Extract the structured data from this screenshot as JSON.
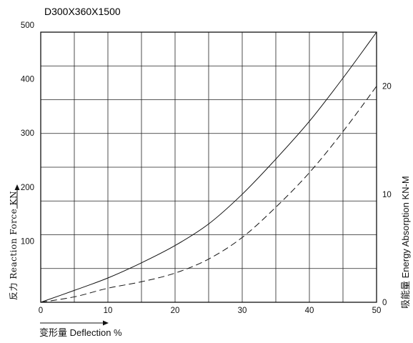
{
  "chart_data": {
    "type": "line",
    "title": "D300X360X1500",
    "xlabel": "变形量 Deflection %",
    "ylabel_left": "反力 Reaction Force KN",
    "ylabel_right": "吸能量 Energy Absorption KN-M",
    "xlim": [
      0,
      50
    ],
    "ylim_left": [
      0,
      500
    ],
    "ylim_right": [
      0,
      25
    ],
    "x_ticks": [
      "0",
      "10",
      "20",
      "30",
      "40",
      "50"
    ],
    "y_ticks_left": [
      "100",
      "200",
      "300",
      "400",
      "500"
    ],
    "y_ticks_right": [
      "0",
      "10",
      "20"
    ],
    "grid": true,
    "series": [
      {
        "axis": "left",
        "style": "solid",
        "x": [
          0,
          5,
          10,
          15,
          20,
          25,
          30,
          35,
          40,
          45,
          50
        ],
        "values": [
          0,
          22,
          45,
          73,
          105,
          145,
          200,
          265,
          335,
          415,
          500
        ]
      },
      {
        "axis": "right",
        "style": "dashed",
        "x": [
          0,
          5,
          10,
          15,
          20,
          25,
          30,
          35,
          40,
          45,
          50
        ],
        "values": [
          0,
          0.5,
          1.3,
          1.9,
          2.7,
          4.0,
          6.0,
          8.8,
          12.0,
          15.8,
          20.0
        ]
      }
    ]
  }
}
